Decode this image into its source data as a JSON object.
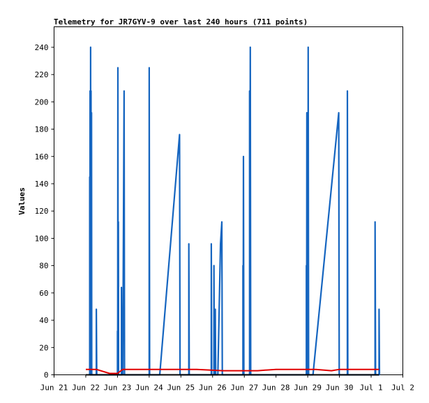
{
  "chart_data": {
    "type": "line",
    "title": "Telemetry for JR7GYV-9 over last 240 hours (711 points)",
    "ylabel": "Values",
    "xlabel": "",
    "ylim": [
      0,
      255
    ],
    "xlim": [
      "Jun 21",
      "Jul 2"
    ],
    "x_ticks": [
      "Jun 21",
      "Jun 22",
      "Jun 23",
      "Jun 24",
      "Jun 25",
      "Jun 26",
      "Jun 27",
      "Jun 28",
      "Jun 29",
      "Jun 30",
      "Jul 1",
      "Jul 2"
    ],
    "y_ticks": [
      0,
      20,
      40,
      60,
      80,
      100,
      120,
      140,
      160,
      180,
      200,
      220,
      240
    ],
    "grid": false,
    "legend": "none",
    "series": [
      {
        "color": "#1565c0",
        "points": [
          [
            "Jun 22 03:00",
            0
          ],
          [
            "Jun 22 03:00",
            145
          ],
          [
            "Jun 22 03:10",
            0
          ],
          [
            "Jun 22 03:15",
            208
          ],
          [
            "Jun 22 03:30",
            0
          ],
          [
            "Jun 22 03:40",
            240
          ],
          [
            "Jun 22 03:50",
            0
          ],
          [
            "Jun 22 04:00",
            208
          ],
          [
            "Jun 22 04:10",
            0
          ],
          [
            "Jun 22 04:20",
            192
          ],
          [
            "Jun 22 04:30",
            0
          ],
          [
            "Jun 22 08:00",
            0
          ],
          [
            "Jun 22 08:00",
            48
          ],
          [
            "Jun 22 08:20",
            0
          ],
          [
            "Jun 23 00:00",
            0
          ],
          [
            "Jun 23 00:00",
            32
          ],
          [
            "Jun 23 00:10",
            0
          ],
          [
            "Jun 23 00:20",
            225
          ],
          [
            "Jun 23 00:30",
            0
          ],
          [
            "Jun 23 00:40",
            112
          ],
          [
            "Jun 23 00:50",
            0
          ],
          [
            "Jun 23 03:00",
            0
          ],
          [
            "Jun 23 03:00",
            64
          ],
          [
            "Jun 23 03:20",
            0
          ],
          [
            "Jun 23 03:30",
            32
          ],
          [
            "Jun 23 04:00",
            0
          ],
          [
            "Jun 23 05:00",
            208
          ],
          [
            "Jun 23 05:20",
            0
          ],
          [
            "Jun 24 00:00",
            0
          ],
          [
            "Jun 24 00:00",
            225
          ],
          [
            "Jun 24 00:20",
            0
          ],
          [
            "Jun 24 08:00",
            0
          ],
          [
            "Jun 24 23:00",
            176
          ],
          [
            "Jun 24 23:20",
            0
          ],
          [
            "Jun 25 06:00",
            0
          ],
          [
            "Jun 25 06:00",
            96
          ],
          [
            "Jun 25 06:20",
            0
          ],
          [
            "Jun 25 23:00",
            0
          ],
          [
            "Jun 25 23:00",
            96
          ],
          [
            "Jun 25 23:20",
            0
          ],
          [
            "Jun 26 01:00",
            0
          ],
          [
            "Jun 26 01:00",
            80
          ],
          [
            "Jun 26 01:20",
            0
          ],
          [
            "Jun 26 02:00",
            0
          ],
          [
            "Jun 26 02:00",
            48
          ],
          [
            "Jun 26 02:20",
            0
          ],
          [
            "Jun 26 04:00",
            0
          ],
          [
            "Jun 26 06:00",
            96
          ],
          [
            "Jun 26 07:00",
            112
          ],
          [
            "Jun 26 07:20",
            0
          ],
          [
            "Jun 26 23:00",
            0
          ],
          [
            "Jun 26 23:00",
            80
          ],
          [
            "Jun 26 23:10",
            0
          ],
          [
            "Jun 26 23:20",
            160
          ],
          [
            "Jun 26 23:40",
            0
          ],
          [
            "Jun 27 04:00",
            0
          ],
          [
            "Jun 27 04:00",
            208
          ],
          [
            "Jun 27 04:10",
            0
          ],
          [
            "Jun 27 04:30",
            240
          ],
          [
            "Jun 27 04:50",
            0
          ],
          [
            "Jun 28 23:00",
            0
          ],
          [
            "Jun 28 23:00",
            80
          ],
          [
            "Jun 28 23:10",
            0
          ],
          [
            "Jun 28 23:20",
            192
          ],
          [
            "Jun 28 23:40",
            0
          ],
          [
            "Jun 29 00:00",
            80
          ],
          [
            "Jun 29 00:10",
            0
          ],
          [
            "Jun 29 00:20",
            240
          ],
          [
            "Jun 29 00:40",
            0
          ],
          [
            "Jun 29 04:00",
            0
          ],
          [
            "Jun 29 23:30",
            192
          ],
          [
            "Jun 29 23:50",
            0
          ],
          [
            "Jun 30 06:00",
            0
          ],
          [
            "Jun 30 06:00",
            208
          ],
          [
            "Jun 30 06:20",
            0
          ],
          [
            "Jul 1 03:00",
            0
          ],
          [
            "Jul 1 03:00",
            112
          ],
          [
            "Jul 1 03:20",
            0
          ],
          [
            "Jul 1 06:00",
            0
          ],
          [
            "Jul 1 06:00",
            48
          ],
          [
            "Jul 1 06:20",
            0
          ]
        ]
      },
      {
        "color": "#e00000",
        "points": [
          [
            "Jun 22 00:00",
            4
          ],
          [
            "Jun 22 08:00",
            4
          ],
          [
            "Jun 22 18:00",
            1
          ],
          [
            "Jun 23 00:00",
            1
          ],
          [
            "Jun 23 04:00",
            4
          ],
          [
            "Jun 24 06:00",
            4
          ],
          [
            "Jun 24 20:00",
            4
          ],
          [
            "Jun 25 12:00",
            4
          ],
          [
            "Jun 26 08:00",
            3
          ],
          [
            "Jun 26 20:00",
            3
          ],
          [
            "Jun 27 10:00",
            3
          ],
          [
            "Jun 28 00:00",
            4
          ],
          [
            "Jun 29 06:00",
            4
          ],
          [
            "Jun 29 18:00",
            3
          ],
          [
            "Jun 30 00:00",
            4
          ],
          [
            "Jul 1 06:00",
            4
          ]
        ]
      },
      {
        "color": "#000000",
        "points": [
          [
            "Jun 22 00:00",
            0
          ],
          [
            "Jul 1 06:00",
            0
          ]
        ]
      }
    ]
  }
}
